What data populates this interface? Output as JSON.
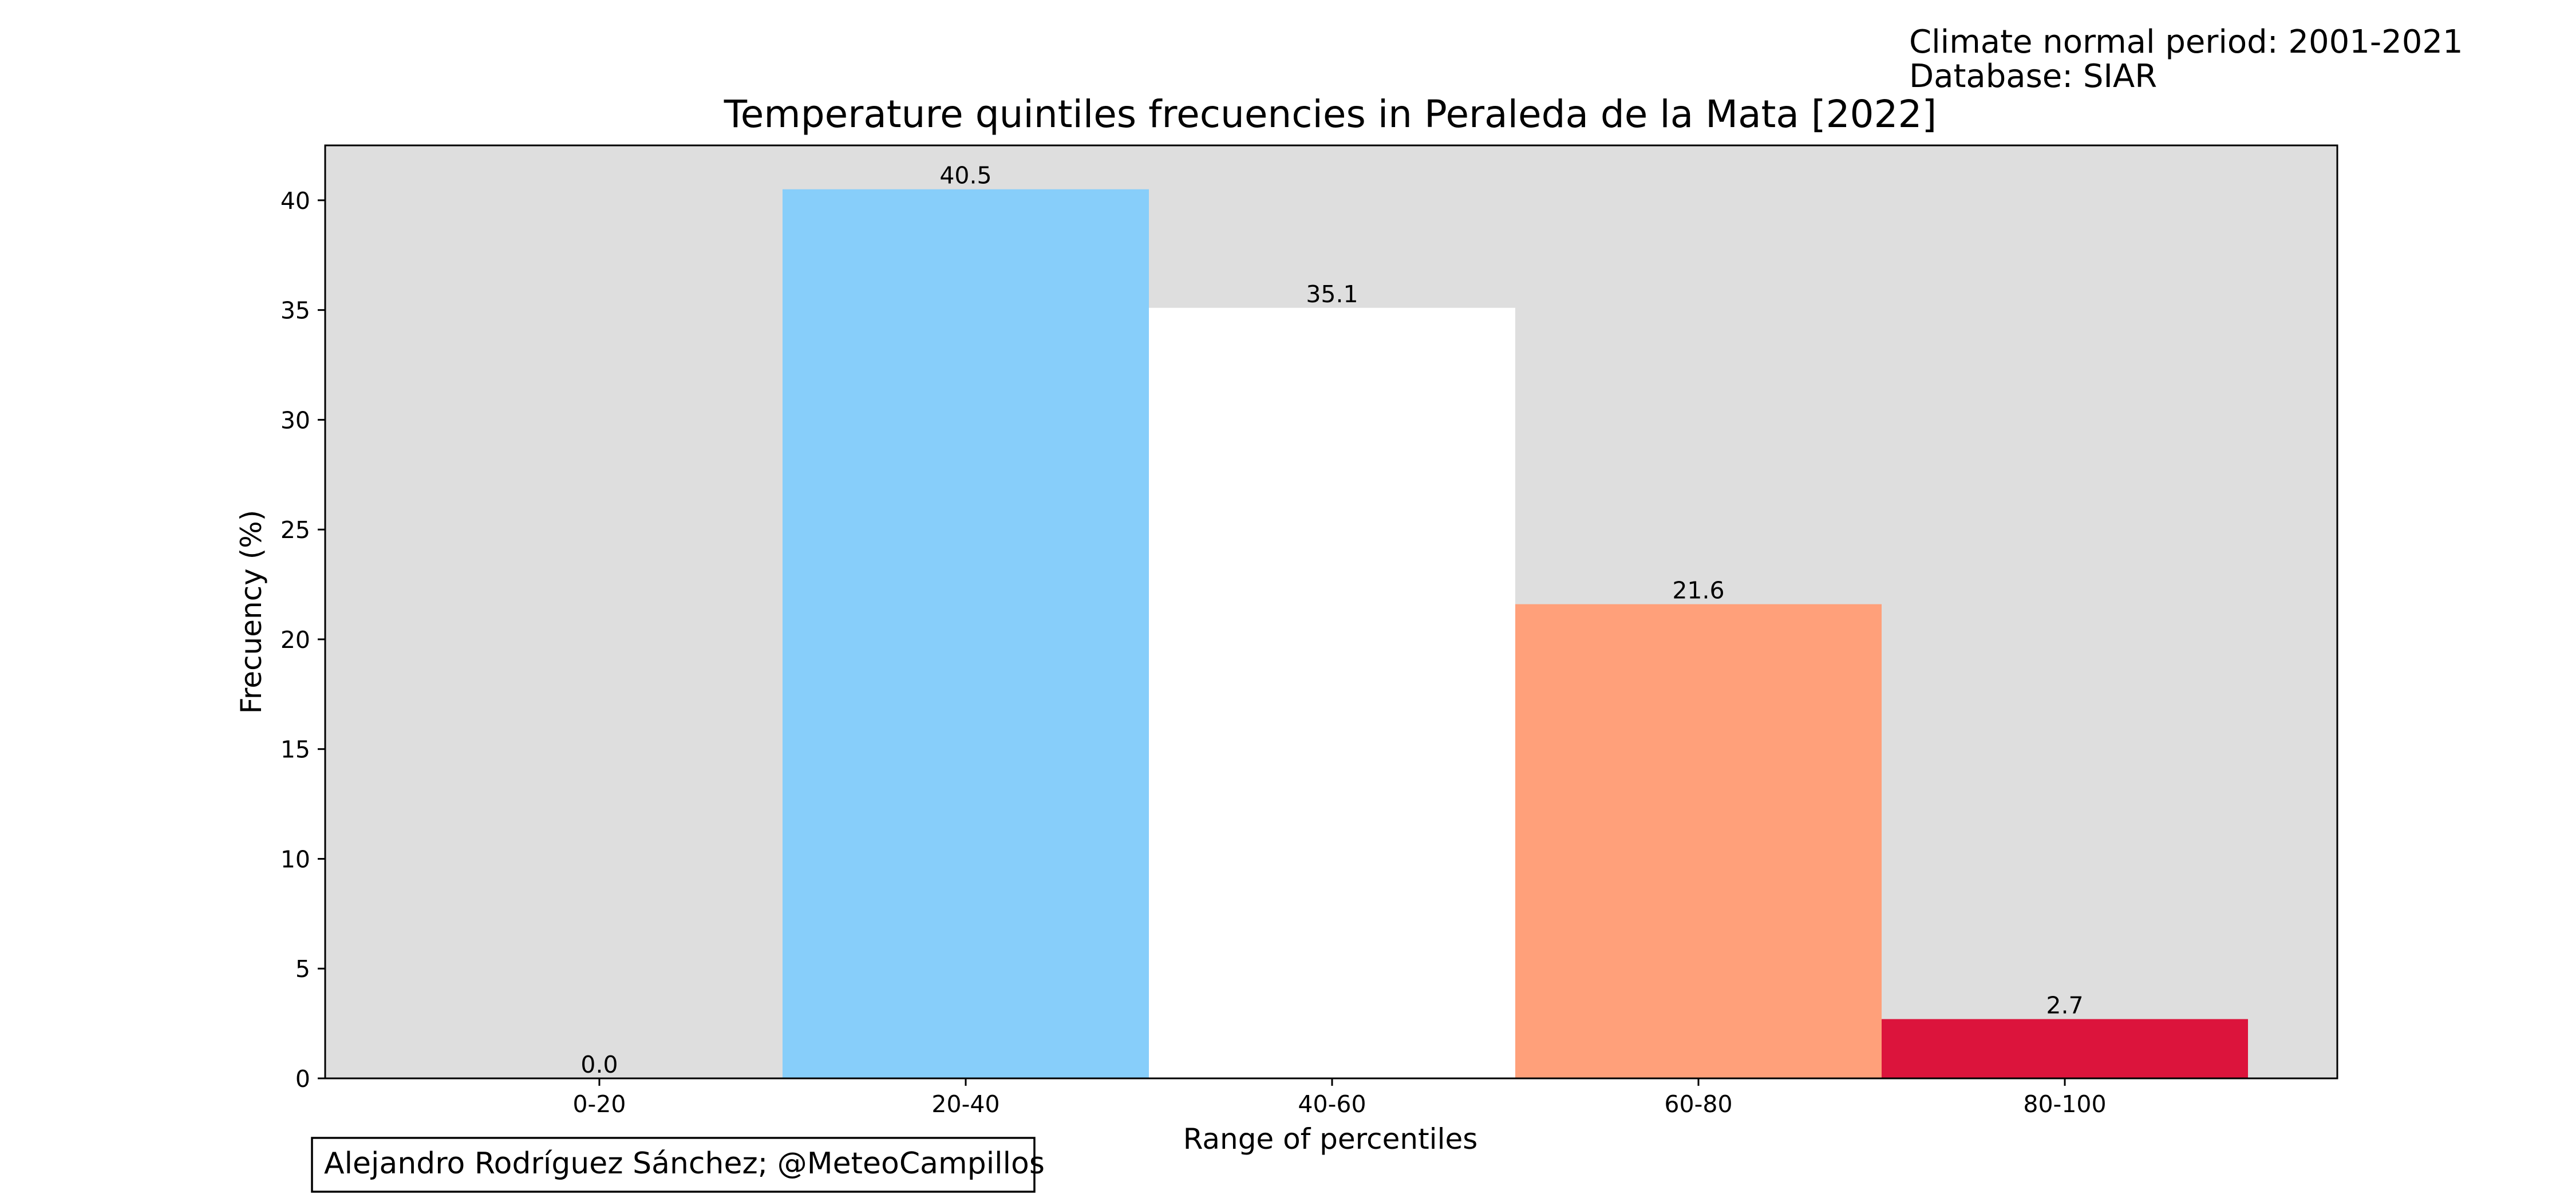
{
  "header": {
    "period_line": "Climate normal period: 2001-2021",
    "database_line": "Database: SIAR"
  },
  "credit": "Alejandro Rodríguez Sánchez; @MeteoCampillos",
  "colors": {
    "plot_background": "#dedede",
    "frame": "#000000"
  },
  "chart_data": {
    "type": "bar",
    "title": "Temperature quintiles frecuencies in Peraleda de la Mata [2022]",
    "xlabel": "Range of percentiles",
    "ylabel": "Frecuency (%)",
    "categories": [
      "0-20",
      "20-40",
      "40-60",
      "60-80",
      "80-100"
    ],
    "values": [
      0.0,
      40.5,
      35.1,
      21.6,
      2.7
    ],
    "value_labels": [
      "0.0",
      "40.5",
      "35.1",
      "21.6",
      "2.7"
    ],
    "bar_colors": [
      "#1e90ff",
      "#87cefa",
      "#ffffff",
      "#ffa07a",
      "#dc143c"
    ],
    "ylim": [
      0,
      42.5
    ],
    "yticks": [
      0,
      5,
      10,
      15,
      20,
      25,
      30,
      35,
      40
    ],
    "ytick_labels": [
      "0",
      "5",
      "10",
      "15",
      "20",
      "25",
      "30",
      "35",
      "40"
    ],
    "grid": false,
    "legend": false
  }
}
